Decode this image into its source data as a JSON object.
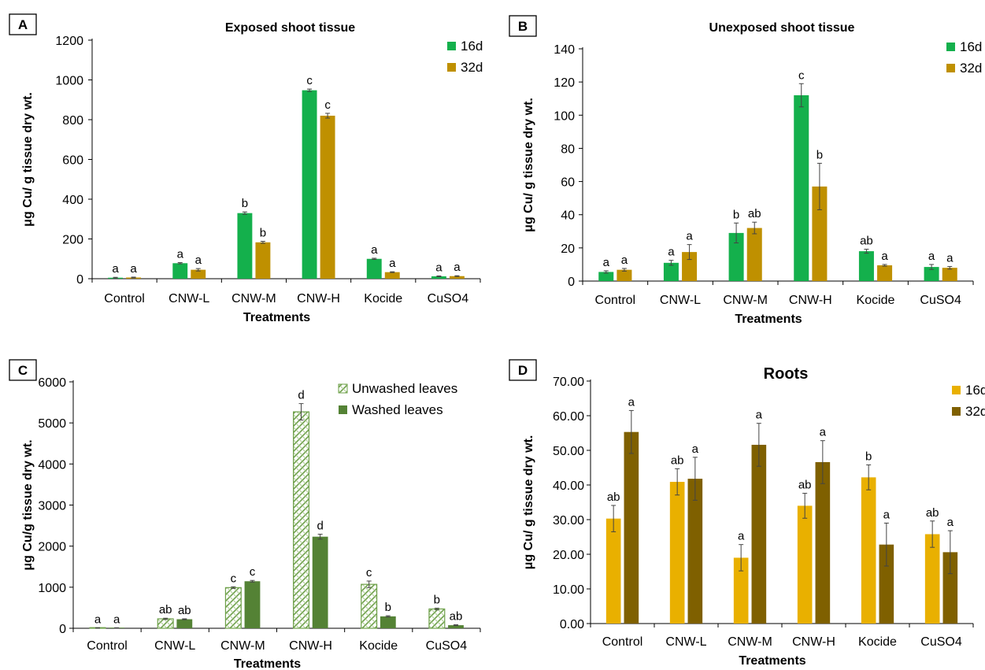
{
  "colors": {
    "green16": "#14b04c",
    "gold32": "#bf9000",
    "washed": "#548235",
    "unwashed_stroke": "#6ea04a",
    "yellow16": "#e9b000",
    "brown32": "#7f6000"
  },
  "chart_data": [
    {
      "panel_label": "A",
      "type": "bar",
      "title": "Exposed shoot tissue",
      "xlabel": "Treatments",
      "ylabel": "μg Cu/ g tissue dry wt.",
      "ylim": [
        0,
        1200
      ],
      "yticks": [
        "0",
        "200",
        "400",
        "600",
        "800",
        "1000",
        "1200"
      ],
      "categories": [
        "Control",
        "CNW-L",
        "CNW-M",
        "CNW-H",
        "Kocide",
        "CuSO4"
      ],
      "legend_position": "top-right",
      "series": [
        {
          "name": "16d",
          "values": [
            5,
            78,
            330,
            948,
            100,
            12
          ],
          "errors": [
            2,
            3,
            6,
            6,
            3,
            2
          ],
          "labels": [
            "a",
            "a",
            "b",
            "c",
            "a",
            "a"
          ],
          "color": "green16"
        },
        {
          "name": "32d",
          "values": [
            6,
            45,
            183,
            820,
            33,
            13
          ],
          "errors": [
            2,
            6,
            5,
            12,
            2,
            2
          ],
          "labels": [
            "a",
            "a",
            "b",
            "c",
            "a",
            "a"
          ],
          "color": "gold32"
        }
      ]
    },
    {
      "panel_label": "B",
      "type": "bar",
      "title": "Unexposed shoot tissue",
      "xlabel": "Treatments",
      "ylabel": "μg Cu/ g tissue dry wt.",
      "ylim": [
        0,
        140
      ],
      "yticks": [
        "0",
        "20",
        "40",
        "60",
        "80",
        "100",
        "120",
        "140"
      ],
      "categories": [
        "Control",
        "CNW-L",
        "CNW-M",
        "CNW-H",
        "Kocide",
        "CuSO4"
      ],
      "legend_position": "top-right",
      "series": [
        {
          "name": "16d",
          "values": [
            5.5,
            11,
            29,
            112,
            18,
            8.5
          ],
          "errors": [
            0.7,
            1.5,
            6,
            7,
            1.2,
            1.5
          ],
          "labels": [
            "a",
            "a",
            "b",
            "c",
            "ab",
            "a"
          ],
          "color": "green16"
        },
        {
          "name": "32d",
          "values": [
            6.8,
            17.5,
            32,
            57,
            9.5,
            8
          ],
          "errors": [
            0.8,
            4.5,
            3.5,
            14,
            0.5,
            0.8
          ],
          "labels": [
            "a",
            "a",
            "ab",
            "b",
            "a",
            "a"
          ],
          "color": "gold32"
        }
      ]
    },
    {
      "panel_label": "C",
      "type": "bar",
      "title": "",
      "xlabel": "Treatments",
      "ylabel": "μg Cu/g tissue dry wt.",
      "ylim": [
        0,
        6000
      ],
      "yticks": [
        "0",
        "1000",
        "2000",
        "3000",
        "4000",
        "5000",
        "6000"
      ],
      "categories": [
        "Control",
        "CNW-L",
        "CNW-M",
        "CNW-H",
        "Kocide",
        "CuSO4"
      ],
      "legend_position": "top-right",
      "series": [
        {
          "name": "Unwashed leaves",
          "values": [
            8,
            230,
            990,
            5270,
            1070,
            470
          ],
          "errors": [
            5,
            15,
            20,
            200,
            80,
            20
          ],
          "labels": [
            "a",
            "ab",
            "c",
            "d",
            "c",
            "b"
          ],
          "color": "unwashed",
          "pattern": true
        },
        {
          "name": "Washed leaves",
          "values": [
            8,
            220,
            1145,
            2230,
            290,
            75
          ],
          "errors": [
            5,
            10,
            20,
            60,
            15,
            10
          ],
          "labels": [
            "a",
            "ab",
            "c",
            "d",
            "b",
            "ab"
          ],
          "color": "washed"
        }
      ]
    },
    {
      "panel_label": "D",
      "type": "bar",
      "title": "Roots",
      "xlabel": "Treatments",
      "ylabel": "μg Cu/ g tissue dry wt.",
      "ylim": [
        0,
        70
      ],
      "yticks": [
        "0.00",
        "10.00",
        "20.00",
        "30.00",
        "40.00",
        "50.00",
        "60.00",
        "70.00"
      ],
      "categories": [
        "Control",
        "CNW-L",
        "CNW-M",
        "CNW-H",
        "Kocide",
        "CuSO4"
      ],
      "legend_position": "top-right",
      "series": [
        {
          "name": "16d",
          "values": [
            30.3,
            40.9,
            19,
            34,
            42.2,
            25.8
          ],
          "errors": [
            3.8,
            3.8,
            3.8,
            3.6,
            3.6,
            3.8
          ],
          "labels": [
            "ab",
            "ab",
            "a",
            "ab",
            "b",
            "ab"
          ],
          "color": "yellow16"
        },
        {
          "name": "32d",
          "values": [
            55.3,
            41.8,
            51.6,
            46.6,
            22.8,
            20.6
          ],
          "errors": [
            6.2,
            6.2,
            6.2,
            6.2,
            6.2,
            6.2
          ],
          "labels": [
            "a",
            "a",
            "a",
            "a",
            "a",
            "a"
          ],
          "color": "brown32"
        }
      ]
    }
  ]
}
